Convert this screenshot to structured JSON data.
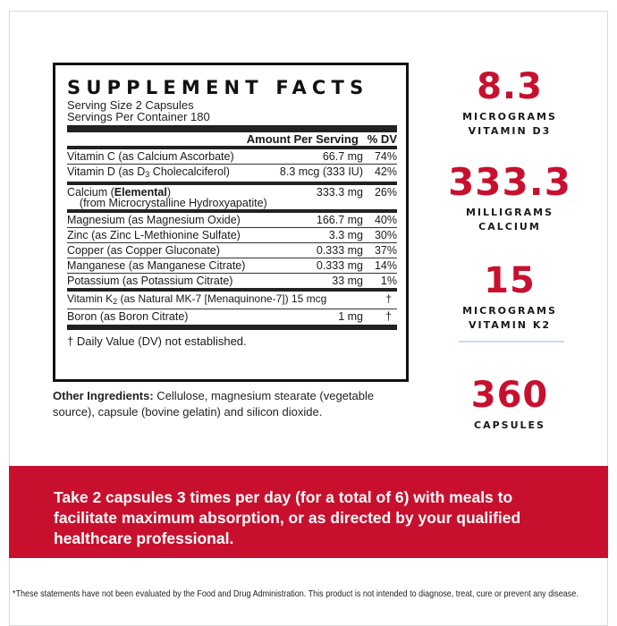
{
  "facts": {
    "title": "SUPPLEMENT FACTS",
    "serving_size": "Serving Size 2 Capsules",
    "servings_per_container": "Servings Per Container 180",
    "header_amount": "Amount Per Serving",
    "header_dv": "% DV",
    "rows": [
      {
        "name": "Vitamin C (as Calcium Ascorbate)",
        "amount": "66.7 mg",
        "dv": "74%"
      },
      {
        "name_pre": "Vitamin D (as D",
        "name_sub": "3",
        "name_post": " Cholecalciferol)",
        "amount": "8.3 mcg (333 IU)",
        "dv": "42%"
      },
      {
        "name_pre": "Calcium (",
        "name_bold": "Elemental",
        "name_post": ")",
        "name_line2": "(from Microcrystalline Hydroxyapatite)",
        "amount": "333.3 mg",
        "dv": "26%"
      },
      {
        "name": "Magnesium (as Magnesium Oxide)",
        "amount": "166.7 mg",
        "dv": "40%"
      },
      {
        "name": "Zinc (as Zinc L-Methionine Sulfate)",
        "amount": "3.3 mg",
        "dv": "30%"
      },
      {
        "name": "Copper (as Copper Gluconate)",
        "amount": "0.333 mg",
        "dv": "37%"
      },
      {
        "name": "Manganese (as Manganese Citrate)",
        "amount": "0.333 mg",
        "dv": "14%"
      },
      {
        "name": "Potassium (as Potassium Citrate)",
        "amount": "33 mg",
        "dv": "1%"
      },
      {
        "name_pre": "Vitamin K",
        "name_sub": "2",
        "name_post": " (as Natural MK-7 [Menaquinone-7]) 15 mcg",
        "amount": "",
        "dv": "†"
      },
      {
        "name": "Boron (as Boron Citrate)",
        "amount": "1 mg",
        "dv": "†"
      }
    ],
    "footnote": "† Daily Value (DV) not established."
  },
  "other_ingredients": {
    "label": "Other Ingredients:",
    "text": " Cellulose, magnesium stearate (vegetable source), capsule (bovine gelatin) and silicon dioxide."
  },
  "stats": [
    {
      "value": "8.3",
      "label1": "MICROGRAMS",
      "label2": "VITAMIN D3"
    },
    {
      "value": "333.3",
      "label1": "MILLIGRAMS",
      "label2": "CALCIUM"
    },
    {
      "value": "15",
      "label1": "MICROGRAMS",
      "label2": "VITAMIN K2"
    },
    {
      "value": "360",
      "label1": "CAPSULES",
      "label2": ""
    }
  ],
  "directions": "Take 2 capsules 3 times per day (for a total of 6) with meals to facilitate maximum absorption, or as directed by your qualified healthcare professional.",
  "disclaimer": "*These statements have not been evaluated by the Food and Drug Administration. This product is not intended to diagnose, treat, cure or prevent any disease.",
  "colors": {
    "accent": "#c8102e",
    "divider": "#c9d9ea"
  }
}
